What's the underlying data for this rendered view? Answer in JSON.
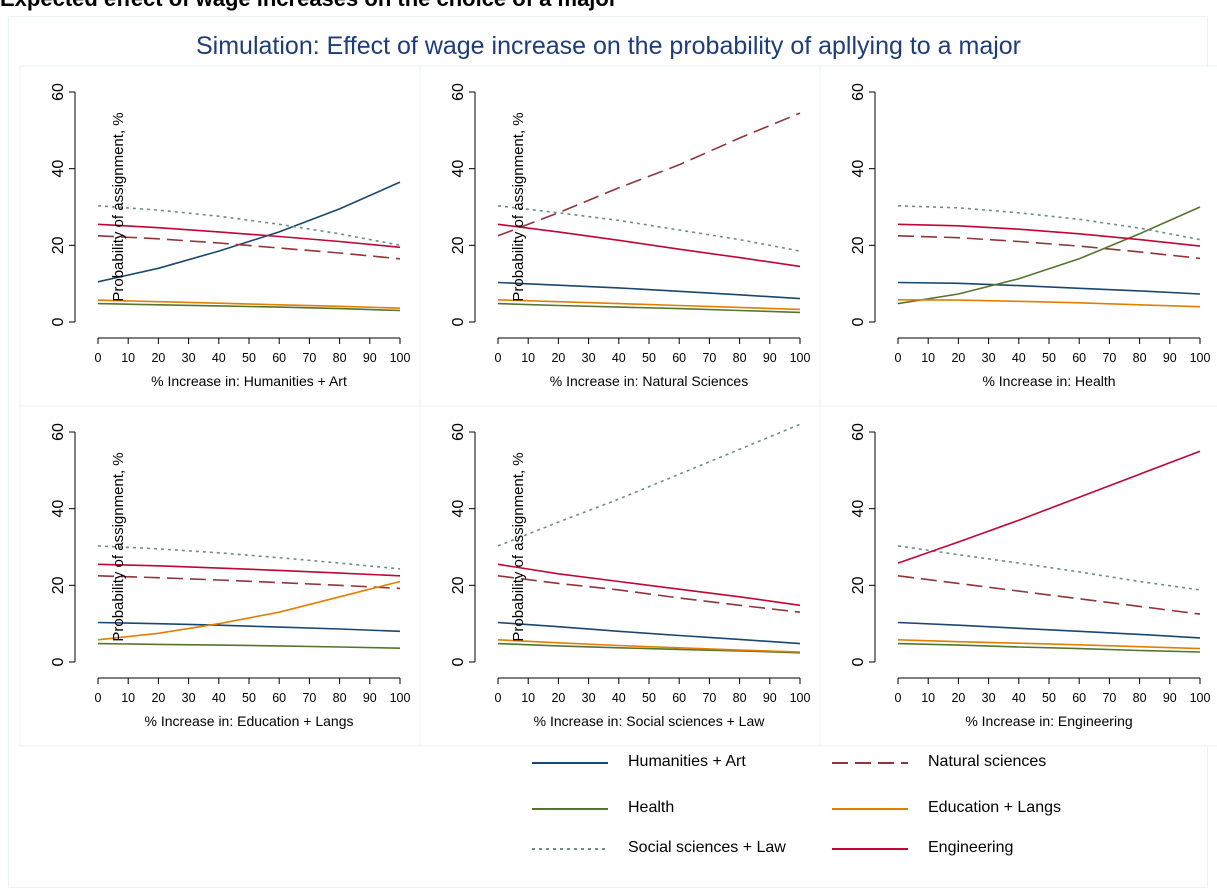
{
  "header_text": "Expected effect of wage increases on the choice of a major",
  "chart_data": {
    "type": "line",
    "title": "Simulation: Effect of wage increase on the probability of apllying to a major",
    "ylabel": "Probability of assignment, %",
    "ylim": [
      0,
      60
    ],
    "yticks": [
      0,
      20,
      40,
      60
    ],
    "xlim": [
      0,
      100
    ],
    "xticks": [
      0,
      10,
      20,
      30,
      40,
      50,
      60,
      70,
      80,
      90,
      100
    ],
    "grid": false,
    "legend_position": "bottom",
    "series_styles": [
      {
        "name": "Humanities + Art",
        "color": "#1a476f",
        "dash": "solid"
      },
      {
        "name": "Natural sciences",
        "color": "#90353b",
        "dash": "long-dash"
      },
      {
        "name": "Health",
        "color": "#55752f",
        "dash": "solid"
      },
      {
        "name": "Education + Langs",
        "color": "#e37e00",
        "dash": "solid"
      },
      {
        "name": "Social sciences + Law",
        "color": "#6e8e84",
        "dash": "dot"
      },
      {
        "name": "Engineering",
        "color": "#c10534",
        "dash": "solid"
      }
    ],
    "panels": [
      {
        "xlabel": "% Increase in: Humanities + Art",
        "show_ylabel": true,
        "x": [
          0,
          20,
          40,
          60,
          80,
          100
        ],
        "series": [
          {
            "name": "Humanities + Art",
            "values": [
              10.5,
              14.0,
              18.5,
              23.5,
              29.5,
              36.5
            ]
          },
          {
            "name": "Natural sciences",
            "values": [
              22.5,
              21.7,
              20.6,
              19.3,
              18.0,
              16.5
            ]
          },
          {
            "name": "Health",
            "values": [
              4.8,
              4.5,
              4.2,
              3.9,
              3.5,
              3.0
            ]
          },
          {
            "name": "Education + Langs",
            "values": [
              5.7,
              5.3,
              4.9,
              4.5,
              4.1,
              3.6
            ]
          },
          {
            "name": "Social sciences + Law",
            "values": [
              30.3,
              29.2,
              27.6,
              25.5,
              23.0,
              20.0
            ]
          },
          {
            "name": "Engineering",
            "values": [
              25.5,
              24.6,
              23.5,
              22.3,
              21.0,
              19.5
            ]
          }
        ]
      },
      {
        "xlabel": "% Increase in: Natural Sciences",
        "show_ylabel": true,
        "x": [
          0,
          20,
          40,
          60,
          80,
          100
        ],
        "series": [
          {
            "name": "Humanities + Art",
            "values": [
              10.3,
              9.6,
              8.9,
              8.0,
              7.1,
              6.1
            ]
          },
          {
            "name": "Natural sciences",
            "values": [
              22.5,
              28.5,
              35.0,
              41.0,
              48.0,
              54.5
            ]
          },
          {
            "name": "Health",
            "values": [
              4.8,
              4.3,
              3.9,
              3.5,
              3.0,
              2.5
            ]
          },
          {
            "name": "Education + Langs",
            "values": [
              5.8,
              5.3,
              4.8,
              4.3,
              3.8,
              3.3
            ]
          },
          {
            "name": "Social sciences + Law",
            "values": [
              30.3,
              28.5,
              26.5,
              24.0,
              21.5,
              18.5
            ]
          },
          {
            "name": "Engineering",
            "values": [
              25.5,
              23.5,
              21.3,
              19.0,
              16.8,
              14.5
            ]
          }
        ]
      },
      {
        "xlabel": "% Increase in: Health",
        "show_ylabel": false,
        "x": [
          0,
          20,
          40,
          60,
          80,
          100
        ],
        "series": [
          {
            "name": "Humanities + Art",
            "values": [
              10.3,
              10.1,
              9.5,
              8.8,
              8.1,
              7.3
            ]
          },
          {
            "name": "Natural sciences",
            "values": [
              22.5,
              22.0,
              21.0,
              19.8,
              18.3,
              16.6
            ]
          },
          {
            "name": "Health",
            "values": [
              4.8,
              7.3,
              11.3,
              16.5,
              23.0,
              30.0
            ]
          },
          {
            "name": "Education + Langs",
            "values": [
              5.8,
              5.7,
              5.4,
              5.0,
              4.5,
              4.0
            ]
          },
          {
            "name": "Social sciences + Law",
            "values": [
              30.3,
              29.8,
              28.5,
              26.8,
              24.5,
              21.5
            ]
          },
          {
            "name": "Engineering",
            "values": [
              25.5,
              25.1,
              24.2,
              23.0,
              21.5,
              19.8
            ]
          }
        ]
      },
      {
        "xlabel": "% Increase in: Education + Langs",
        "show_ylabel": true,
        "x": [
          0,
          20,
          40,
          60,
          80,
          100
        ],
        "series": [
          {
            "name": "Humanities + Art",
            "values": [
              10.3,
              10.0,
              9.6,
              9.1,
              8.6,
              8.0
            ]
          },
          {
            "name": "Natural sciences",
            "values": [
              22.5,
              22.0,
              21.4,
              20.7,
              20.0,
              19.2
            ]
          },
          {
            "name": "Health",
            "values": [
              4.8,
              4.6,
              4.4,
              4.2,
              3.9,
              3.6
            ]
          },
          {
            "name": "Education + Langs",
            "values": [
              5.8,
              7.5,
              10.0,
              13.0,
              17.0,
              21.0
            ]
          },
          {
            "name": "Social sciences + Law",
            "values": [
              30.3,
              29.5,
              28.5,
              27.2,
              25.8,
              24.3
            ]
          },
          {
            "name": "Engineering",
            "values": [
              25.5,
              25.1,
              24.5,
              23.9,
              23.2,
              22.5
            ]
          }
        ]
      },
      {
        "xlabel": "% Increase in: Social sciences + Law",
        "show_ylabel": true,
        "x": [
          0,
          20,
          40,
          60,
          80,
          100
        ],
        "series": [
          {
            "name": "Humanities + Art",
            "values": [
              10.3,
              9.2,
              8.0,
              6.9,
              5.9,
              4.8
            ]
          },
          {
            "name": "Natural sciences",
            "values": [
              22.5,
              20.5,
              18.8,
              16.7,
              14.8,
              13.0
            ]
          },
          {
            "name": "Health",
            "values": [
              4.8,
              4.2,
              3.7,
              3.3,
              2.9,
              2.4
            ]
          },
          {
            "name": "Education + Langs",
            "values": [
              5.8,
              5.0,
              4.3,
              3.7,
              3.1,
              2.6
            ]
          },
          {
            "name": "Social sciences + Law",
            "values": [
              30.3,
              36.5,
              42.5,
              49.0,
              55.5,
              62.0
            ]
          },
          {
            "name": "Engineering",
            "values": [
              25.5,
              23.0,
              21.0,
              19.0,
              17.0,
              14.8
            ]
          }
        ]
      },
      {
        "xlabel": "% Increase in: Engineering",
        "show_ylabel": false,
        "x": [
          0,
          20,
          40,
          60,
          80,
          100
        ],
        "series": [
          {
            "name": "Humanities + Art",
            "values": [
              10.3,
              9.6,
              8.8,
              8.0,
              7.2,
              6.3
            ]
          },
          {
            "name": "Natural sciences",
            "values": [
              22.5,
              20.5,
              18.5,
              16.5,
              14.5,
              12.5
            ]
          },
          {
            "name": "Health",
            "values": [
              4.8,
              4.4,
              3.9,
              3.5,
              3.0,
              2.6
            ]
          },
          {
            "name": "Education + Langs",
            "values": [
              5.8,
              5.3,
              4.9,
              4.5,
              4.0,
              3.5
            ]
          },
          {
            "name": "Social sciences + Law",
            "values": [
              30.3,
              28.0,
              25.8,
              23.5,
              21.0,
              18.8
            ]
          },
          {
            "name": "Engineering",
            "values": [
              25.8,
              31.3,
              37.0,
              43.0,
              49.0,
              55.0
            ]
          }
        ]
      }
    ]
  }
}
